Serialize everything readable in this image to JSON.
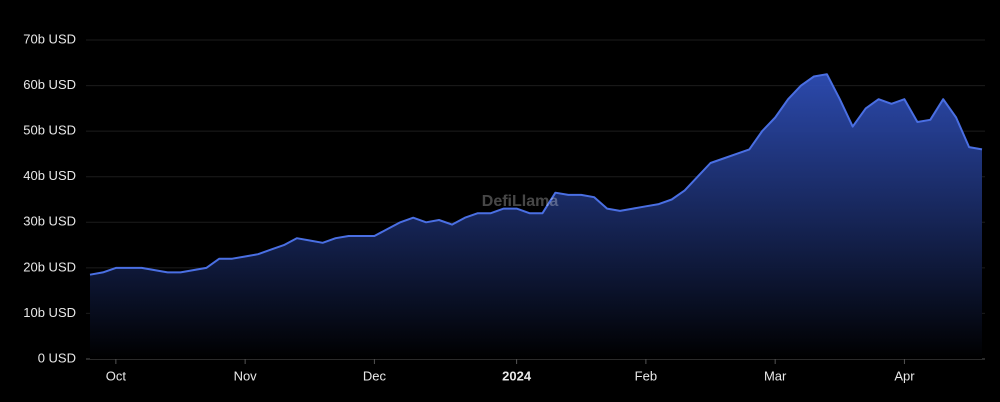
{
  "chart_data": {
    "type": "area",
    "watermark": "DefiLlama",
    "color": "#4a6fe3",
    "categories": [
      null,
      null,
      "Oct",
      null,
      null,
      null,
      null,
      null,
      null,
      null,
      null,
      null,
      "Nov",
      null,
      null,
      null,
      null,
      null,
      null,
      null,
      null,
      null,
      "Dec",
      null,
      null,
      null,
      null,
      null,
      null,
      null,
      null,
      null,
      null,
      "2024",
      null,
      null,
      null,
      null,
      null,
      null,
      null,
      null,
      null,
      "Feb",
      null,
      null,
      null,
      null,
      null,
      null,
      null,
      null,
      null,
      "Mar",
      null,
      null,
      null,
      null,
      null,
      null,
      null,
      null,
      null,
      "Apr",
      null,
      null,
      null,
      null,
      null,
      null
    ],
    "values": [
      18.5,
      19,
      20,
      20,
      20,
      19.5,
      19,
      19,
      19.5,
      20,
      22,
      22,
      22.5,
      23,
      24,
      25,
      26.5,
      26,
      25.5,
      26.5,
      27,
      27,
      27,
      28.5,
      30,
      31,
      30,
      30.5,
      29.5,
      31,
      32,
      32,
      33,
      33,
      32,
      32,
      36.5,
      36,
      36,
      35.5,
      33,
      32.5,
      33,
      33.5,
      34,
      35,
      37,
      40,
      43,
      44,
      45,
      46,
      50,
      53,
      57,
      60,
      62,
      62.5,
      57,
      51,
      55,
      57,
      56,
      57,
      52,
      52.5,
      57,
      53,
      46.5,
      46
    ],
    "ylim": [
      0,
      70
    ],
    "yticks": [
      {
        "value": 0,
        "label": "0 USD"
      },
      {
        "value": 10,
        "label": "10b USD"
      },
      {
        "value": 20,
        "label": "20b USD"
      },
      {
        "value": 30,
        "label": "30b USD"
      },
      {
        "value": 40,
        "label": "40b USD"
      },
      {
        "value": 50,
        "label": "50b USD"
      },
      {
        "value": 60,
        "label": "60b USD"
      },
      {
        "value": 70,
        "label": "70b USD"
      }
    ],
    "grid": true
  }
}
